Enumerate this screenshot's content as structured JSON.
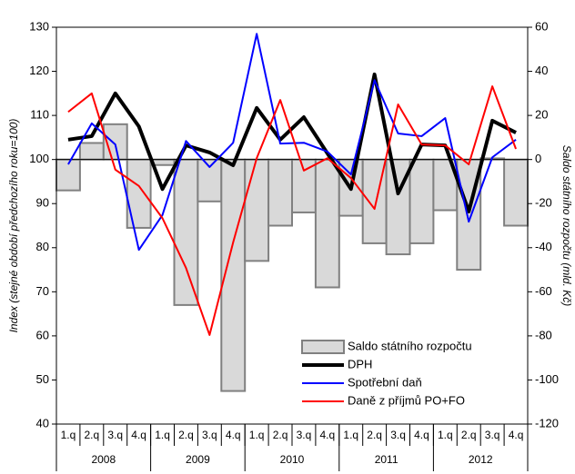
{
  "chart_data": {
    "type": "combo",
    "categories": [
      "1.q",
      "2.q",
      "3.q",
      "4.q",
      "1.q",
      "2.q",
      "3.q",
      "4.q",
      "1.q",
      "2.q",
      "3.q",
      "4.q",
      "1.q",
      "2.q",
      "3.q",
      "4.q",
      "1.q",
      "2.q",
      "3.q",
      "4.q"
    ],
    "groups": [
      "2008",
      "2009",
      "2010",
      "2011",
      "2012"
    ],
    "y_label": "Index (stejné období předchozího roku=100)",
    "y2_label": "Saldo státního rozpočtu (mld. Kč)",
    "ylim": [
      40,
      130
    ],
    "yticks": [
      40,
      50,
      60,
      70,
      80,
      90,
      100,
      110,
      120,
      130
    ],
    "y2lim": [
      -120,
      60
    ],
    "y2ticks": [
      -120,
      -100,
      -80,
      -60,
      -40,
      -20,
      0,
      20,
      40,
      60
    ],
    "legend": "lower right",
    "series": [
      {
        "name": "Saldo státního rozpočtu",
        "type": "bar",
        "axis": "y2",
        "color": "#d9d9d9",
        "edge": "#808080",
        "values": [
          -14,
          7.5,
          16,
          -31,
          -2.5,
          -66,
          -19,
          -105,
          -46,
          -30,
          -24,
          -58,
          -25.5,
          -38,
          -43,
          -38,
          -23,
          -50,
          0.5,
          -30
        ]
      },
      {
        "name": "DPH",
        "type": "line",
        "color": "#000000",
        "width": 4,
        "values": [
          104.5,
          105.3,
          115,
          107.5,
          93.3,
          103.2,
          101.6,
          98.7,
          111.7,
          104.5,
          109.6,
          101.4,
          93.3,
          119.3,
          92.3,
          103.4,
          103.2,
          88.2,
          108.8,
          106.1
        ]
      },
      {
        "name": "Spotřební daň",
        "type": "line",
        "color": "#0000ff",
        "width": 2,
        "values": [
          98.9,
          108.2,
          103.4,
          79.5,
          87.4,
          104.2,
          98.3,
          103.8,
          128.5,
          103.6,
          103.8,
          101.8,
          96.6,
          118,
          105.9,
          105.3,
          109.4,
          85.9,
          100.5,
          104.5
        ]
      },
      {
        "name": "Daně z příjmů PO+FO",
        "type": "line",
        "color": "#ff0000",
        "width": 2,
        "values": [
          110.8,
          115,
          97.7,
          94,
          86.7,
          75.4,
          60.2,
          81.2,
          100.3,
          113.5,
          97.5,
          100.3,
          95.8,
          88.8,
          112.5,
          103.4,
          103.2,
          98.9,
          116.6,
          102.4
        ]
      }
    ]
  }
}
